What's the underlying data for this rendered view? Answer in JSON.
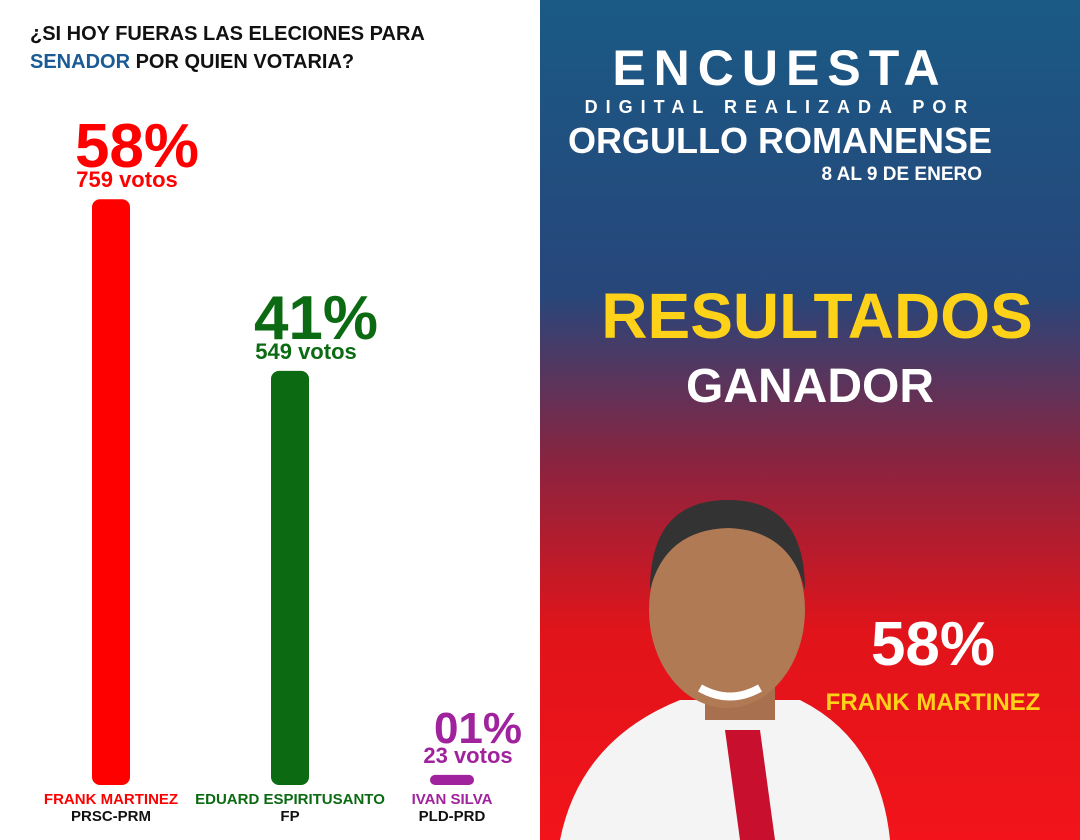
{
  "chart_data": {
    "type": "bar",
    "title_parts": [
      "¿SI HOY FUERAS LAS ELECIONES PARA",
      "SENADOR",
      "POR QUIEN VOTARIA?"
    ],
    "categories": [
      "FRANK MARTINEZ",
      "EDUARD ESPIRITUSANTO",
      "IVAN SILVA"
    ],
    "parties": [
      "PRSC-PRM",
      "FP",
      "PLD-PRD"
    ],
    "values": [
      58,
      41,
      1
    ],
    "value_labels": [
      "58%",
      "41%",
      "01%"
    ],
    "vote_labels": [
      "759 votos",
      "549 votos",
      "23 votos"
    ],
    "colors": [
      "#ff0000",
      "#0b6a12",
      "#a0229c"
    ]
  },
  "poster": {
    "heading": "ENCUESTA",
    "subheading": "DIGITAL REALIZADA POR",
    "organizer": "ORGULLO ROMANENSE",
    "dates": "8 AL 9 DE ENERO",
    "results": "RESULTADOS",
    "winner_heading": "GANADOR",
    "winner_share": "58%",
    "winner_name": "FRANK MARTINEZ"
  }
}
